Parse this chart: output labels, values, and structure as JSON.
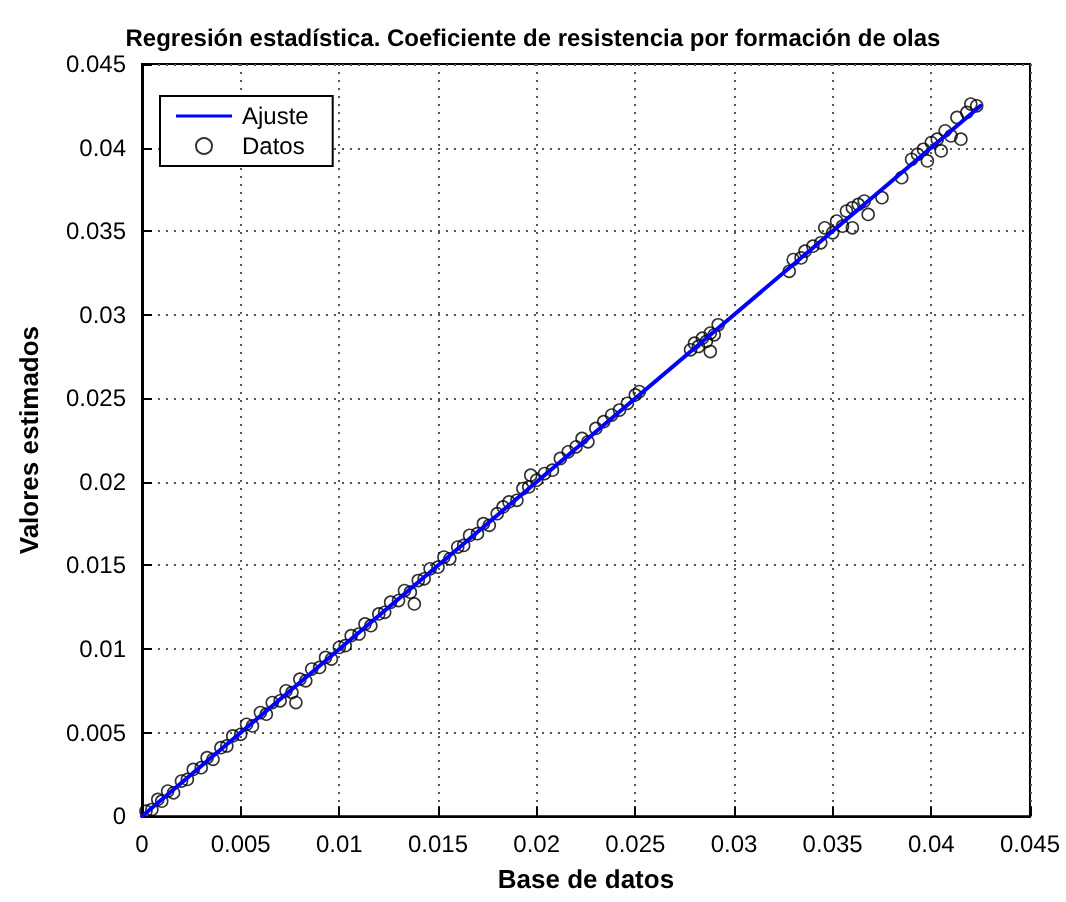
{
  "chart_data": {
    "type": "scatter",
    "title": "Regresión estadística. Coeficiente de resistencia por formación de olas",
    "xlabel": "Base de datos",
    "ylabel": "Valores estimados",
    "xlim": [
      0,
      0.045
    ],
    "ylim": [
      0,
      0.045
    ],
    "xticks": [
      0,
      0.005,
      0.01,
      0.015,
      0.02,
      0.025,
      0.03,
      0.035,
      0.04,
      0.045
    ],
    "yticks": [
      0,
      0.005,
      0.01,
      0.015,
      0.02,
      0.025,
      0.03,
      0.035,
      0.04,
      0.045
    ],
    "grid": true,
    "legend": "top left",
    "marker": "circle",
    "series": [
      {
        "name": "Ajuste",
        "type": "line",
        "color": "#0000ff",
        "line_style": "solid",
        "marker": "none",
        "x": [
          0,
          0.0425
        ],
        "values": [
          0,
          0.0425
        ]
      },
      {
        "name": "Datos",
        "color": "#000000",
        "x": [
          0.0002,
          0.0005,
          0.0008,
          0.001,
          0.0013,
          0.0016,
          0.002,
          0.0023,
          0.0026,
          0.003,
          0.0033,
          0.0036,
          0.004,
          0.0043,
          0.0046,
          0.005,
          0.0053,
          0.0056,
          0.006,
          0.0063,
          0.0066,
          0.007,
          0.0073,
          0.0076,
          0.0078,
          0.008,
          0.0083,
          0.0086,
          0.009,
          0.0093,
          0.0096,
          0.01,
          0.0103,
          0.0106,
          0.011,
          0.0113,
          0.0116,
          0.012,
          0.0123,
          0.0126,
          0.013,
          0.0133,
          0.0136,
          0.0138,
          0.014,
          0.0143,
          0.0146,
          0.015,
          0.0153,
          0.0156,
          0.016,
          0.0163,
          0.0166,
          0.017,
          0.0173,
          0.0176,
          0.018,
          0.0183,
          0.0186,
          0.019,
          0.0193,
          0.0196,
          0.0197,
          0.02,
          0.0204,
          0.0208,
          0.0212,
          0.0216,
          0.022,
          0.0223,
          0.0226,
          0.023,
          0.0234,
          0.0238,
          0.0242,
          0.0246,
          0.025,
          0.0252,
          0.0278,
          0.028,
          0.0282,
          0.0284,
          0.0286,
          0.0288,
          0.029,
          0.0292,
          0.0288,
          0.0328,
          0.033,
          0.0334,
          0.0336,
          0.034,
          0.0344,
          0.0346,
          0.035,
          0.0352,
          0.0355,
          0.0357,
          0.036,
          0.036,
          0.0363,
          0.0366,
          0.0368,
          0.0375,
          0.0385,
          0.039,
          0.0393,
          0.0396,
          0.0398,
          0.04,
          0.0403,
          0.0405,
          0.0407,
          0.041,
          0.0413,
          0.0418,
          0.042,
          0.0423,
          0.0415
        ],
        "values": [
          0.0003,
          0.0004,
          0.001,
          0.0009,
          0.0015,
          0.0014,
          0.0021,
          0.0022,
          0.0028,
          0.0029,
          0.0035,
          0.0034,
          0.0041,
          0.0042,
          0.0048,
          0.0049,
          0.0055,
          0.0054,
          0.0062,
          0.0061,
          0.0068,
          0.0069,
          0.0075,
          0.0074,
          0.0068,
          0.0082,
          0.0081,
          0.0088,
          0.0089,
          0.0095,
          0.0094,
          0.0101,
          0.0102,
          0.0108,
          0.0109,
          0.0115,
          0.0114,
          0.0121,
          0.0122,
          0.0128,
          0.0129,
          0.0135,
          0.0134,
          0.0127,
          0.0141,
          0.0142,
          0.0148,
          0.0149,
          0.0155,
          0.0154,
          0.0161,
          0.0162,
          0.0168,
          0.0169,
          0.0175,
          0.0174,
          0.0181,
          0.0185,
          0.0188,
          0.0189,
          0.0196,
          0.0197,
          0.0204,
          0.0201,
          0.0205,
          0.0207,
          0.0214,
          0.0218,
          0.0221,
          0.0226,
          0.0224,
          0.0232,
          0.0236,
          0.024,
          0.0243,
          0.0247,
          0.0252,
          0.0254,
          0.0279,
          0.0283,
          0.0281,
          0.0286,
          0.0284,
          0.0289,
          0.0288,
          0.0294,
          0.0278,
          0.0326,
          0.0333,
          0.0334,
          0.0338,
          0.0341,
          0.0343,
          0.0352,
          0.0349,
          0.0356,
          0.0353,
          0.0362,
          0.0364,
          0.0352,
          0.0366,
          0.0368,
          0.036,
          0.037,
          0.0382,
          0.0393,
          0.0396,
          0.0399,
          0.0392,
          0.0403,
          0.0405,
          0.0398,
          0.041,
          0.0407,
          0.0418,
          0.0421,
          0.0426,
          0.0425,
          0.0405
        ]
      }
    ]
  }
}
